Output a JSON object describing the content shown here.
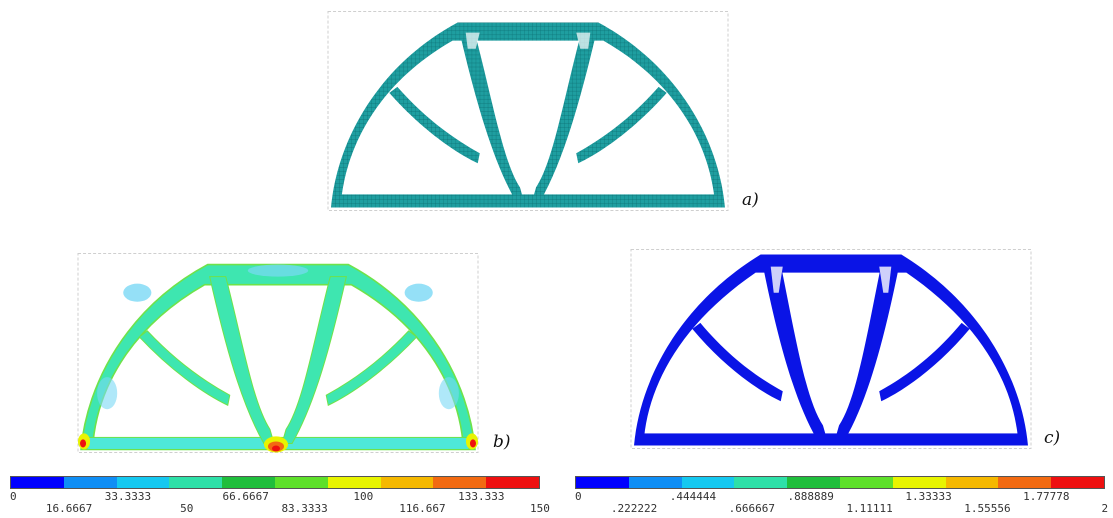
{
  "panels": {
    "a": {
      "label": "a)",
      "color": "#1e9ea0"
    },
    "b": {
      "label": "b)"
    },
    "c": {
      "label": "c)",
      "color": "#0a14e6"
    }
  },
  "legend_colors": [
    "#0000ff",
    "#0f8ef5",
    "#15c8f0",
    "#2ee0a8",
    "#1fbe3c",
    "#5ee02a",
    "#e8f400",
    "#f5b800",
    "#f26a12",
    "#ee1010"
  ],
  "legends": {
    "stress": {
      "ticks": [
        "0",
        "16.6667",
        "33.3333",
        "50",
        "66.6667",
        "83.3333",
        "100",
        "116.667",
        "133.333",
        "150"
      ]
    },
    "displacement": {
      "ticks": [
        "0",
        ".222222",
        ".444444",
        ".666667",
        ".888889",
        "1.11111",
        "1.33333",
        "1.55556",
        "1.77778",
        "2"
      ]
    }
  }
}
